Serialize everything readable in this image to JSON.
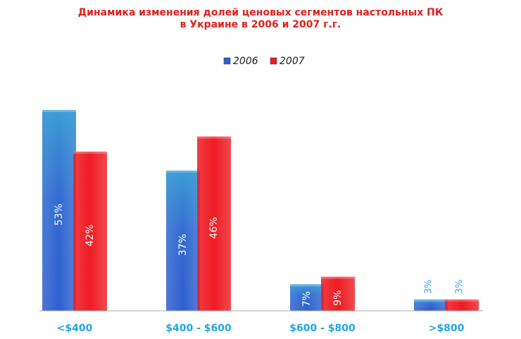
{
  "chart_data": {
    "type": "bar",
    "title": [
      "Динамика изменения долей ценовых сегментов настольных ПК",
      "в Украине в 2006 и 2007 г.г."
    ],
    "categories": [
      "<$400",
      "$400 - $600",
      "$600 - $800",
      ">$800"
    ],
    "series": [
      {
        "name": "2006",
        "values": [
          53,
          37,
          7,
          3
        ],
        "labels": [
          "53%",
          "37%",
          "7%",
          "3%"
        ],
        "color": "#2f5fcf"
      },
      {
        "name": "2007",
        "values": [
          42,
          46,
          9,
          3
        ],
        "labels": [
          "42%",
          "46%",
          "9%",
          "3%"
        ],
        "color": "#ee1c24"
      }
    ],
    "ylim": [
      0,
      53
    ],
    "grid": false,
    "legend_position": "top-center",
    "category_label_color": "#21a7e0",
    "outside_label_color": "#3ba3e0",
    "axis_color": "#aaaaaa"
  }
}
